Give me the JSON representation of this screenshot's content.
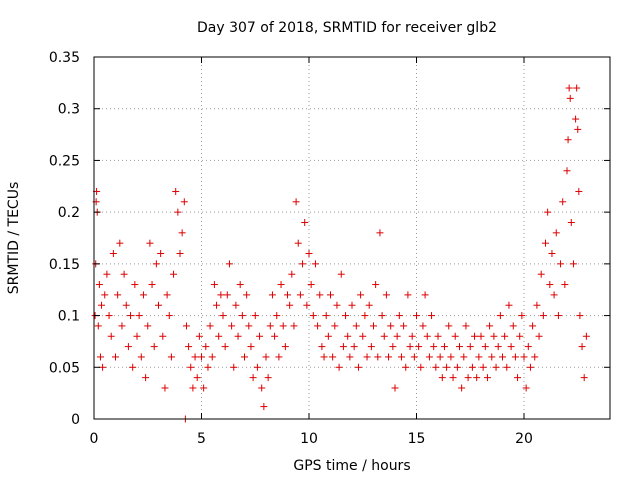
{
  "chart_data": {
    "type": "scatter",
    "title": "Day 307 of 2018, SRMTID for receiver glb2",
    "xlabel": "GPS time / hours",
    "ylabel": "SRMTID / TECUs",
    "xlim": [
      0,
      24
    ],
    "ylim": [
      0,
      0.35
    ],
    "xticks": [
      0,
      5,
      10,
      15,
      20
    ],
    "xtick_labels": [
      "0",
      "5",
      "10",
      "15",
      "20"
    ],
    "yticks": [
      0,
      0.05,
      0.1,
      0.15,
      0.2,
      0.25,
      0.3,
      0.35
    ],
    "ytick_labels": [
      "0",
      "0.05",
      "0.1",
      "0.15",
      "0.2",
      "0.25",
      "0.3",
      "0.35"
    ],
    "grid": true,
    "marker": "plus",
    "color": "#dd0000",
    "series": [
      {
        "name": "SRMTID",
        "points": [
          [
            0.05,
            0.1
          ],
          [
            0.08,
            0.15
          ],
          [
            0.1,
            0.21
          ],
          [
            0.12,
            0.22
          ],
          [
            0.15,
            0.2
          ],
          [
            0.2,
            0.09
          ],
          [
            0.25,
            0.13
          ],
          [
            0.3,
            0.06
          ],
          [
            0.35,
            0.11
          ],
          [
            0.4,
            0.05
          ],
          [
            0.5,
            0.12
          ],
          [
            0.6,
            0.14
          ],
          [
            0.7,
            0.1
          ],
          [
            0.8,
            0.08
          ],
          [
            0.9,
            0.16
          ],
          [
            1.0,
            0.06
          ],
          [
            1.1,
            0.12
          ],
          [
            1.2,
            0.17
          ],
          [
            1.3,
            0.09
          ],
          [
            1.4,
            0.14
          ],
          [
            1.5,
            0.11
          ],
          [
            1.6,
            0.07
          ],
          [
            1.7,
            0.1
          ],
          [
            1.8,
            0.05
          ],
          [
            1.9,
            0.13
          ],
          [
            2.0,
            0.08
          ],
          [
            2.1,
            0.1
          ],
          [
            2.2,
            0.06
          ],
          [
            2.3,
            0.12
          ],
          [
            2.4,
            0.04
          ],
          [
            2.5,
            0.09
          ],
          [
            2.6,
            0.17
          ],
          [
            2.7,
            0.13
          ],
          [
            2.8,
            0.07
          ],
          [
            2.9,
            0.15
          ],
          [
            3.0,
            0.11
          ],
          [
            3.1,
            0.16
          ],
          [
            3.2,
            0.08
          ],
          [
            3.3,
            0.03
          ],
          [
            3.4,
            0.12
          ],
          [
            3.5,
            0.1
          ],
          [
            3.6,
            0.06
          ],
          [
            3.7,
            0.14
          ],
          [
            3.8,
            0.22
          ],
          [
            3.9,
            0.2
          ],
          [
            4.0,
            0.16
          ],
          [
            4.1,
            0.18
          ],
          [
            4.2,
            0.21
          ],
          [
            4.25,
            0.0
          ],
          [
            4.3,
            0.09
          ],
          [
            4.4,
            0.07
          ],
          [
            4.5,
            0.05
          ],
          [
            4.6,
            0.03
          ],
          [
            4.7,
            0.06
          ],
          [
            4.8,
            0.04
          ],
          [
            4.9,
            0.08
          ],
          [
            5.0,
            0.06
          ],
          [
            5.1,
            0.03
          ],
          [
            5.2,
            0.07
          ],
          [
            5.3,
            0.05
          ],
          [
            5.4,
            0.09
          ],
          [
            5.5,
            0.06
          ],
          [
            5.6,
            0.13
          ],
          [
            5.7,
            0.11
          ],
          [
            5.8,
            0.08
          ],
          [
            5.9,
            0.12
          ],
          [
            6.0,
            0.1
          ],
          [
            6.1,
            0.07
          ],
          [
            6.2,
            0.12
          ],
          [
            6.3,
            0.15
          ],
          [
            6.4,
            0.09
          ],
          [
            6.5,
            0.05
          ],
          [
            6.6,
            0.11
          ],
          [
            6.7,
            0.08
          ],
          [
            6.8,
            0.13
          ],
          [
            6.9,
            0.1
          ],
          [
            7.0,
            0.06
          ],
          [
            7.1,
            0.12
          ],
          [
            7.2,
            0.09
          ],
          [
            7.3,
            0.07
          ],
          [
            7.4,
            0.04
          ],
          [
            7.5,
            0.1
          ],
          [
            7.6,
            0.05
          ],
          [
            7.7,
            0.08
          ],
          [
            7.8,
            0.03
          ],
          [
            7.9,
            0.012
          ],
          [
            8.0,
            0.06
          ],
          [
            8.1,
            0.04
          ],
          [
            8.2,
            0.09
          ],
          [
            8.3,
            0.12
          ],
          [
            8.4,
            0.08
          ],
          [
            8.5,
            0.1
          ],
          [
            8.6,
            0.06
          ],
          [
            8.7,
            0.13
          ],
          [
            8.8,
            0.09
          ],
          [
            8.9,
            0.07
          ],
          [
            9.0,
            0.12
          ],
          [
            9.1,
            0.11
          ],
          [
            9.2,
            0.14
          ],
          [
            9.3,
            0.09
          ],
          [
            9.4,
            0.21
          ],
          [
            9.5,
            0.17
          ],
          [
            9.6,
            0.12
          ],
          [
            9.7,
            0.15
          ],
          [
            9.8,
            0.19
          ],
          [
            9.9,
            0.11
          ],
          [
            10.0,
            0.16
          ],
          [
            10.1,
            0.13
          ],
          [
            10.2,
            0.1
          ],
          [
            10.3,
            0.15
          ],
          [
            10.4,
            0.09
          ],
          [
            10.5,
            0.12
          ],
          [
            10.6,
            0.07
          ],
          [
            10.7,
            0.06
          ],
          [
            10.8,
            0.1
          ],
          [
            10.9,
            0.08
          ],
          [
            11.0,
            0.12
          ],
          [
            11.1,
            0.06
          ],
          [
            11.2,
            0.09
          ],
          [
            11.3,
            0.11
          ],
          [
            11.4,
            0.05
          ],
          [
            11.5,
            0.14
          ],
          [
            11.6,
            0.07
          ],
          [
            11.7,
            0.1
          ],
          [
            11.8,
            0.08
          ],
          [
            11.9,
            0.06
          ],
          [
            12.0,
            0.11
          ],
          [
            12.1,
            0.07
          ],
          [
            12.2,
            0.09
          ],
          [
            12.3,
            0.05
          ],
          [
            12.4,
            0.12
          ],
          [
            12.5,
            0.08
          ],
          [
            12.6,
            0.1
          ],
          [
            12.7,
            0.06
          ],
          [
            12.8,
            0.11
          ],
          [
            12.9,
            0.07
          ],
          [
            13.0,
            0.09
          ],
          [
            13.1,
            0.13
          ],
          [
            13.2,
            0.06
          ],
          [
            13.3,
            0.18
          ],
          [
            13.4,
            0.1
          ],
          [
            13.5,
            0.08
          ],
          [
            13.6,
            0.12
          ],
          [
            13.7,
            0.06
          ],
          [
            13.8,
            0.09
          ],
          [
            13.9,
            0.07
          ],
          [
            14.0,
            0.03
          ],
          [
            14.1,
            0.08
          ],
          [
            14.2,
            0.1
          ],
          [
            14.3,
            0.06
          ],
          [
            14.4,
            0.09
          ],
          [
            14.5,
            0.05
          ],
          [
            14.6,
            0.12
          ],
          [
            14.7,
            0.07
          ],
          [
            14.8,
            0.08
          ],
          [
            14.9,
            0.06
          ],
          [
            15.0,
            0.1
          ],
          [
            15.1,
            0.07
          ],
          [
            15.2,
            0.05
          ],
          [
            15.3,
            0.09
          ],
          [
            15.4,
            0.12
          ],
          [
            15.5,
            0.08
          ],
          [
            15.6,
            0.06
          ],
          [
            15.7,
            0.1
          ],
          [
            15.8,
            0.07
          ],
          [
            15.9,
            0.05
          ],
          [
            16.0,
            0.08
          ],
          [
            16.1,
            0.06
          ],
          [
            16.2,
            0.04
          ],
          [
            16.3,
            0.07
          ],
          [
            16.4,
            0.05
          ],
          [
            16.5,
            0.09
          ],
          [
            16.6,
            0.06
          ],
          [
            16.7,
            0.04
          ],
          [
            16.8,
            0.08
          ],
          [
            16.9,
            0.05
          ],
          [
            17.0,
            0.07
          ],
          [
            17.1,
            0.03
          ],
          [
            17.2,
            0.06
          ],
          [
            17.3,
            0.09
          ],
          [
            17.4,
            0.04
          ],
          [
            17.5,
            0.07
          ],
          [
            17.6,
            0.05
          ],
          [
            17.7,
            0.08
          ],
          [
            17.8,
            0.04
          ],
          [
            17.9,
            0.06
          ],
          [
            18.0,
            0.08
          ],
          [
            18.1,
            0.05
          ],
          [
            18.2,
            0.07
          ],
          [
            18.3,
            0.04
          ],
          [
            18.4,
            0.09
          ],
          [
            18.5,
            0.06
          ],
          [
            18.6,
            0.08
          ],
          [
            18.7,
            0.05
          ],
          [
            18.8,
            0.07
          ],
          [
            18.9,
            0.1
          ],
          [
            19.0,
            0.06
          ],
          [
            19.1,
            0.08
          ],
          [
            19.2,
            0.05
          ],
          [
            19.3,
            0.11
          ],
          [
            19.4,
            0.07
          ],
          [
            19.5,
            0.09
          ],
          [
            19.6,
            0.06
          ],
          [
            19.7,
            0.04
          ],
          [
            19.8,
            0.08
          ],
          [
            19.9,
            0.1
          ],
          [
            20.0,
            0.06
          ],
          [
            20.1,
            0.03
          ],
          [
            20.2,
            0.07
          ],
          [
            20.3,
            0.05
          ],
          [
            20.4,
            0.09
          ],
          [
            20.5,
            0.06
          ],
          [
            20.6,
            0.11
          ],
          [
            20.7,
            0.08
          ],
          [
            20.8,
            0.14
          ],
          [
            20.9,
            0.1
          ],
          [
            21.0,
            0.17
          ],
          [
            21.1,
            0.2
          ],
          [
            21.2,
            0.13
          ],
          [
            21.3,
            0.16
          ],
          [
            21.4,
            0.12
          ],
          [
            21.5,
            0.18
          ],
          [
            21.6,
            0.1
          ],
          [
            21.7,
            0.15
          ],
          [
            21.8,
            0.21
          ],
          [
            21.9,
            0.13
          ],
          [
            22.0,
            0.24
          ],
          [
            22.05,
            0.27
          ],
          [
            22.1,
            0.32
          ],
          [
            22.15,
            0.31
          ],
          [
            22.2,
            0.19
          ],
          [
            22.3,
            0.15
          ],
          [
            22.4,
            0.29
          ],
          [
            22.45,
            0.32
          ],
          [
            22.5,
            0.28
          ],
          [
            22.55,
            0.22
          ],
          [
            22.6,
            0.1
          ],
          [
            22.7,
            0.07
          ],
          [
            22.8,
            0.04
          ],
          [
            22.9,
            0.08
          ]
        ]
      }
    ]
  }
}
